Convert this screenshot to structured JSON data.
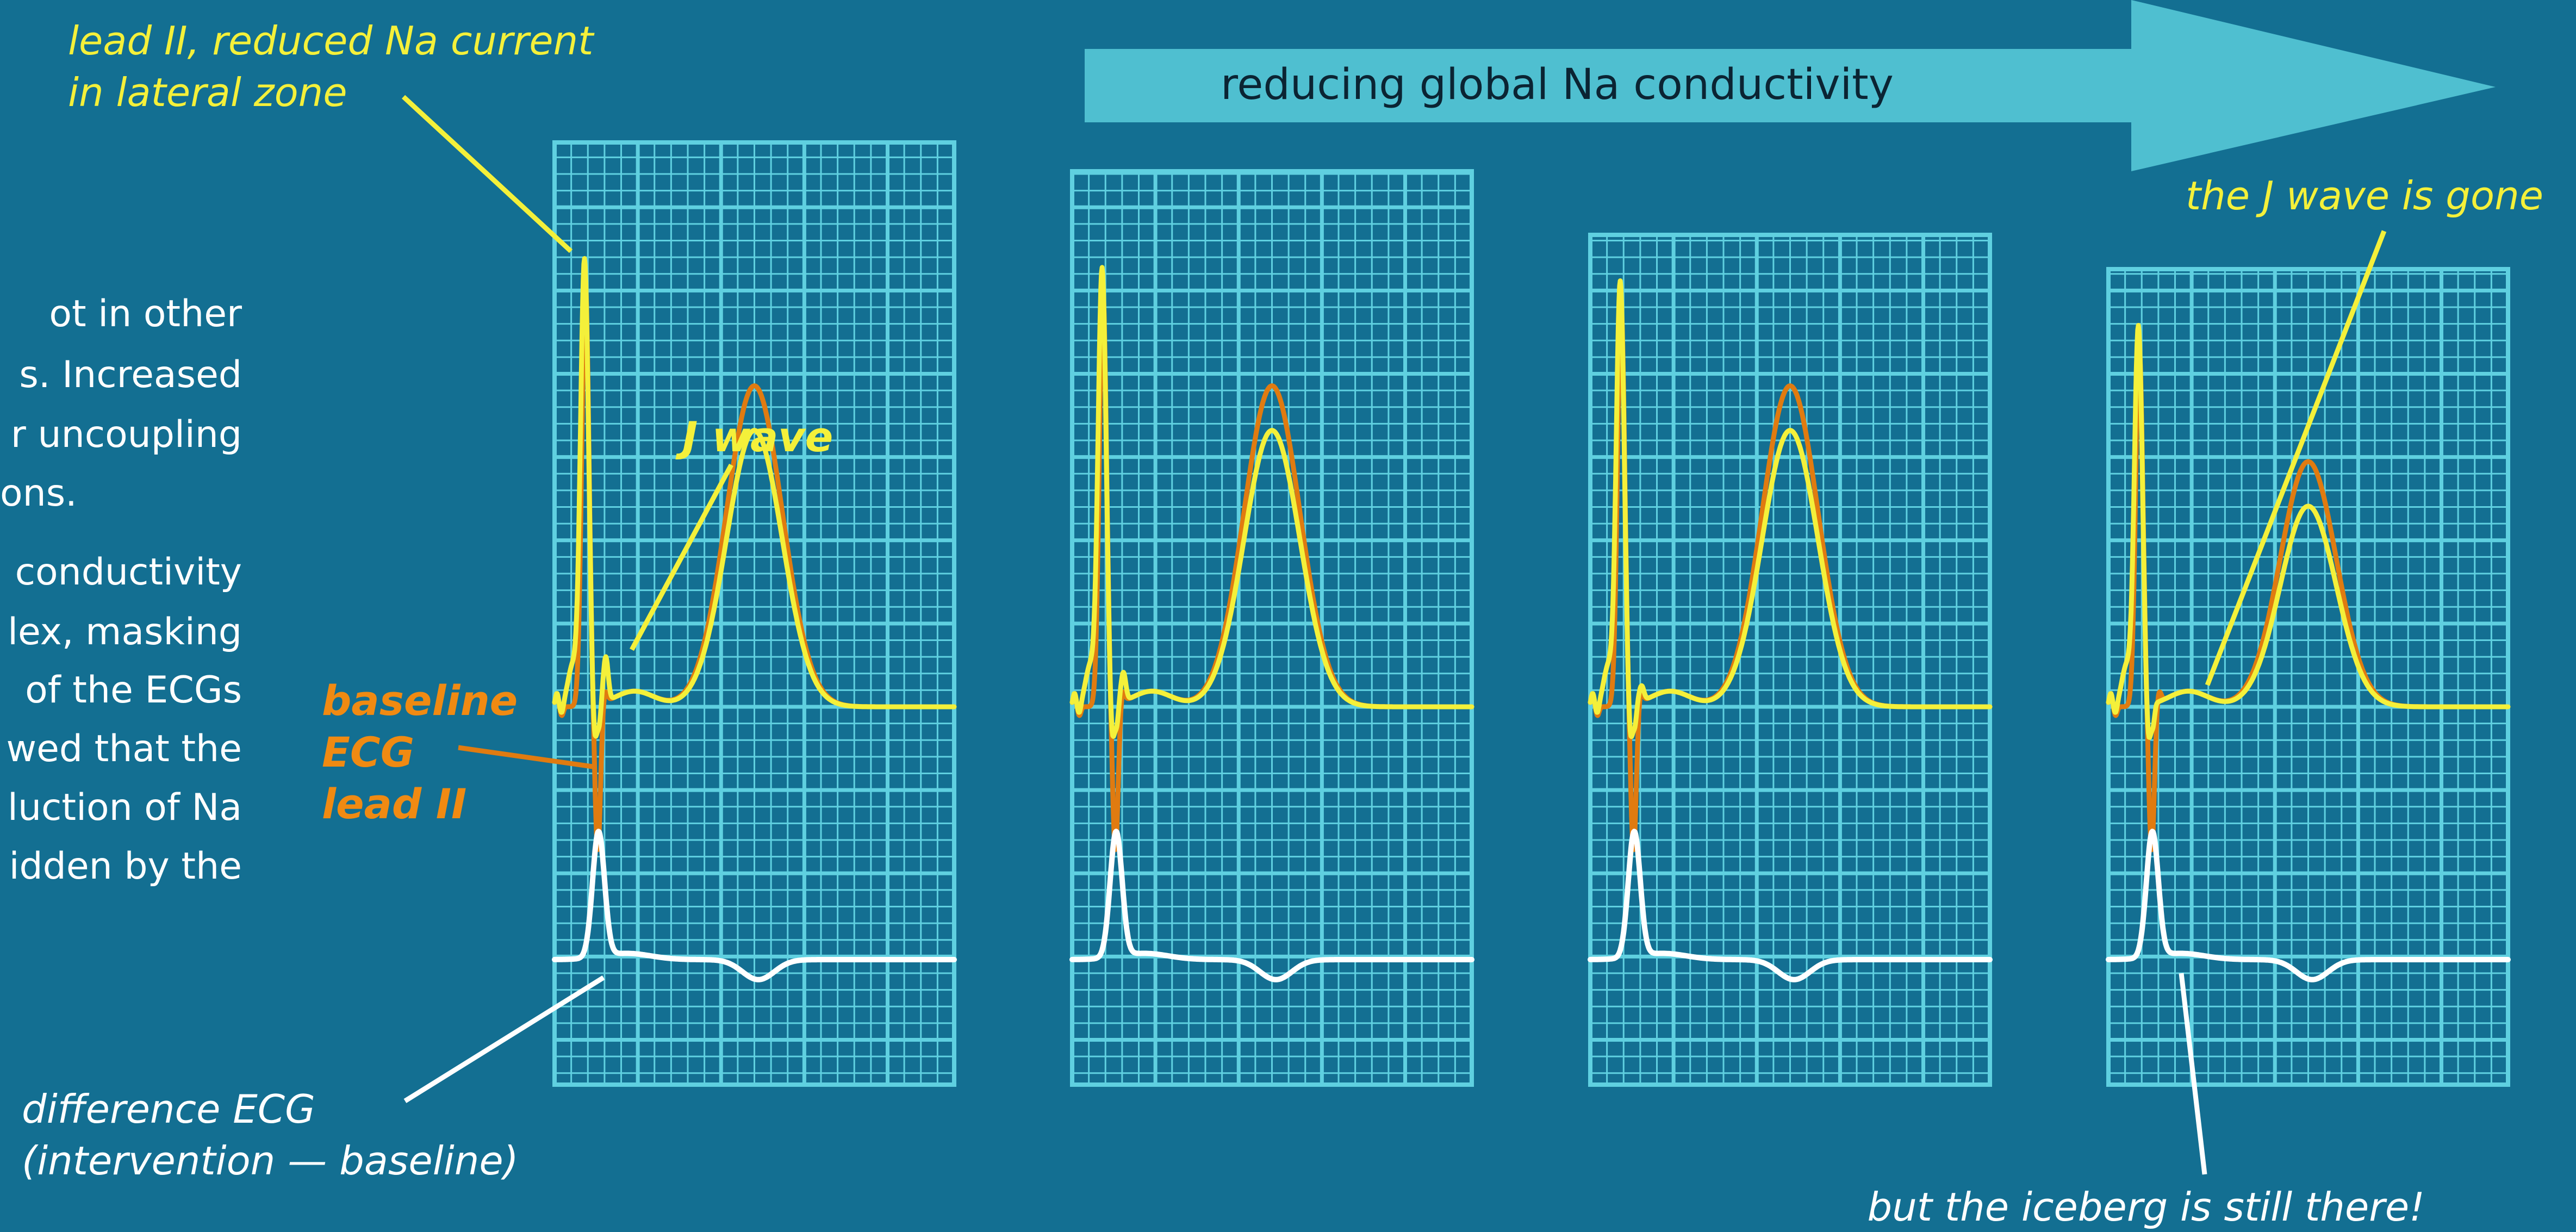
{
  "colors": {
    "background": "#136f92",
    "grid": "#5fd0e0",
    "arrow": "#4fbfd0",
    "lead_trace": "#f4f03a",
    "baseline_trace": "#e07b10",
    "difference_trace": "#ffffff",
    "pointer_yellow": "#f4f03a",
    "pointer_orange": "#e07b10",
    "pointer_white": "#ffffff"
  },
  "arrow": {
    "label": "reducing global Na conductivity"
  },
  "annotations": {
    "lead_line1": "lead II, reduced Na current",
    "lead_line2": "in lateral zone",
    "j_wave": "J wave",
    "baseline_line1": "baseline",
    "baseline_line2": "ECG",
    "baseline_line3": "lead II",
    "j_wave_gone": "the J wave is gone",
    "difference_line1": "difference ECG",
    "difference_line2": "(intervention — baseline)",
    "iceberg": "but the iceberg is still there!"
  },
  "body_text": {
    "lines": [
      "ot  in  other",
      "s.  Increased",
      "r  uncoupling",
      "ons.",
      "conductivity",
      "lex, masking",
      "of  the  ECGs",
      "wed that the",
      "luction of Na",
      "idden by the"
    ]
  },
  "panels": [
    {
      "name": "panel-1",
      "r_peak": 1.0,
      "j_notch": 1.0,
      "t_lead": 0.62,
      "t_base": 0.72
    },
    {
      "name": "panel-2",
      "r_peak": 0.98,
      "j_notch": 0.65,
      "t_lead": 0.62,
      "t_base": 0.72
    },
    {
      "name": "panel-3",
      "r_peak": 0.95,
      "j_notch": 0.35,
      "t_lead": 0.62,
      "t_base": 0.72
    },
    {
      "name": "panel-4",
      "r_peak": 0.85,
      "j_notch": 0.0,
      "t_lead": 0.45,
      "t_base": 0.55
    }
  ]
}
